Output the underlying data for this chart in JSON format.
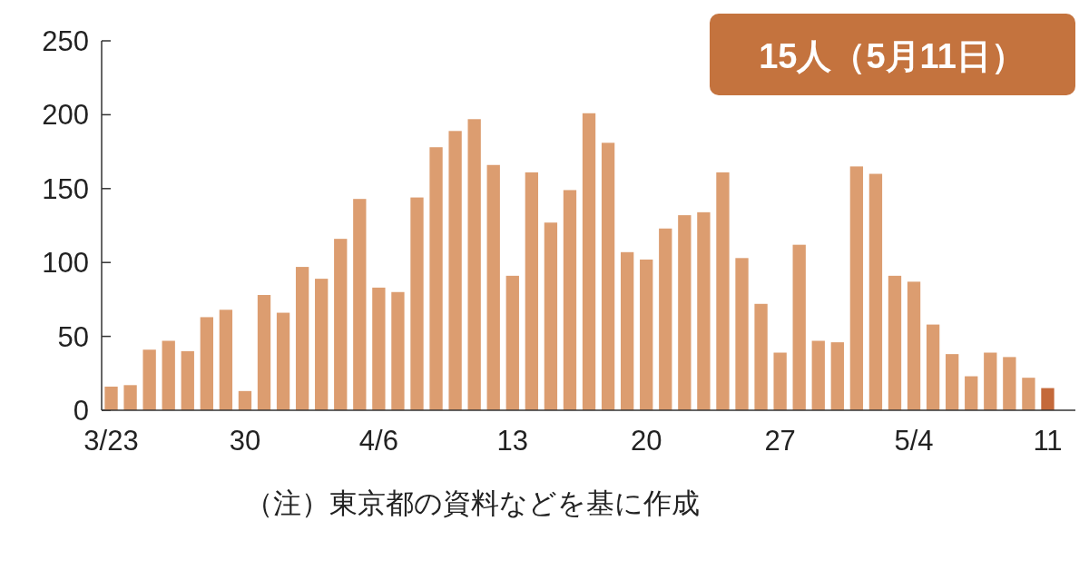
{
  "chart_data": {
    "type": "bar",
    "categories": [
      "3/23",
      null,
      null,
      null,
      null,
      null,
      null,
      "30",
      null,
      null,
      null,
      null,
      null,
      null,
      "4/6",
      null,
      null,
      null,
      null,
      null,
      null,
      "13",
      null,
      null,
      null,
      null,
      null,
      null,
      "20",
      null,
      null,
      null,
      null,
      null,
      null,
      "27",
      null,
      null,
      null,
      null,
      null,
      null,
      "5/4",
      null,
      null,
      null,
      null,
      null,
      null,
      "11"
    ],
    "values": [
      16,
      17,
      41,
      47,
      40,
      63,
      68,
      13,
      78,
      66,
      97,
      89,
      116,
      143,
      83,
      80,
      144,
      178,
      189,
      197,
      166,
      91,
      161,
      127,
      149,
      201,
      181,
      107,
      102,
      123,
      132,
      134,
      161,
      103,
      72,
      39,
      112,
      47,
      46,
      165,
      160,
      91,
      87,
      58,
      38,
      23,
      39,
      36,
      22,
      15
    ],
    "colors": [
      "#dc9d70",
      "#dc9d70",
      "#dc9d70",
      "#dc9d70",
      "#dc9d70",
      "#dc9d70",
      "#dc9d70",
      "#dc9d70",
      "#dc9d70",
      "#dc9d70",
      "#dc9d70",
      "#dc9d70",
      "#dc9d70",
      "#dc9d70",
      "#dc9d70",
      "#dc9d70",
      "#dc9d70",
      "#dc9d70",
      "#dc9d70",
      "#dc9d70",
      "#dc9d70",
      "#dc9d70",
      "#dc9d70",
      "#dc9d70",
      "#dc9d70",
      "#dc9d70",
      "#dc9d70",
      "#dc9d70",
      "#dc9d70",
      "#dc9d70",
      "#dc9d70",
      "#dc9d70",
      "#dc9d70",
      "#dc9d70",
      "#dc9d70",
      "#dc9d70",
      "#dc9d70",
      "#dc9d70",
      "#dc9d70",
      "#dc9d70",
      "#dc9d70",
      "#dc9d70",
      "#dc9d70",
      "#dc9d70",
      "#dc9d70",
      "#dc9d70",
      "#dc9d70",
      "#dc9d70",
      "#dc9d70",
      "#c4693a"
    ],
    "ylim": [
      0,
      250
    ],
    "yticks": [
      0,
      50,
      100,
      150,
      200,
      250
    ],
    "grid": false,
    "annotations": [
      "15人（5月11日）",
      "（注）東京都の資料などを基に作成"
    ]
  }
}
